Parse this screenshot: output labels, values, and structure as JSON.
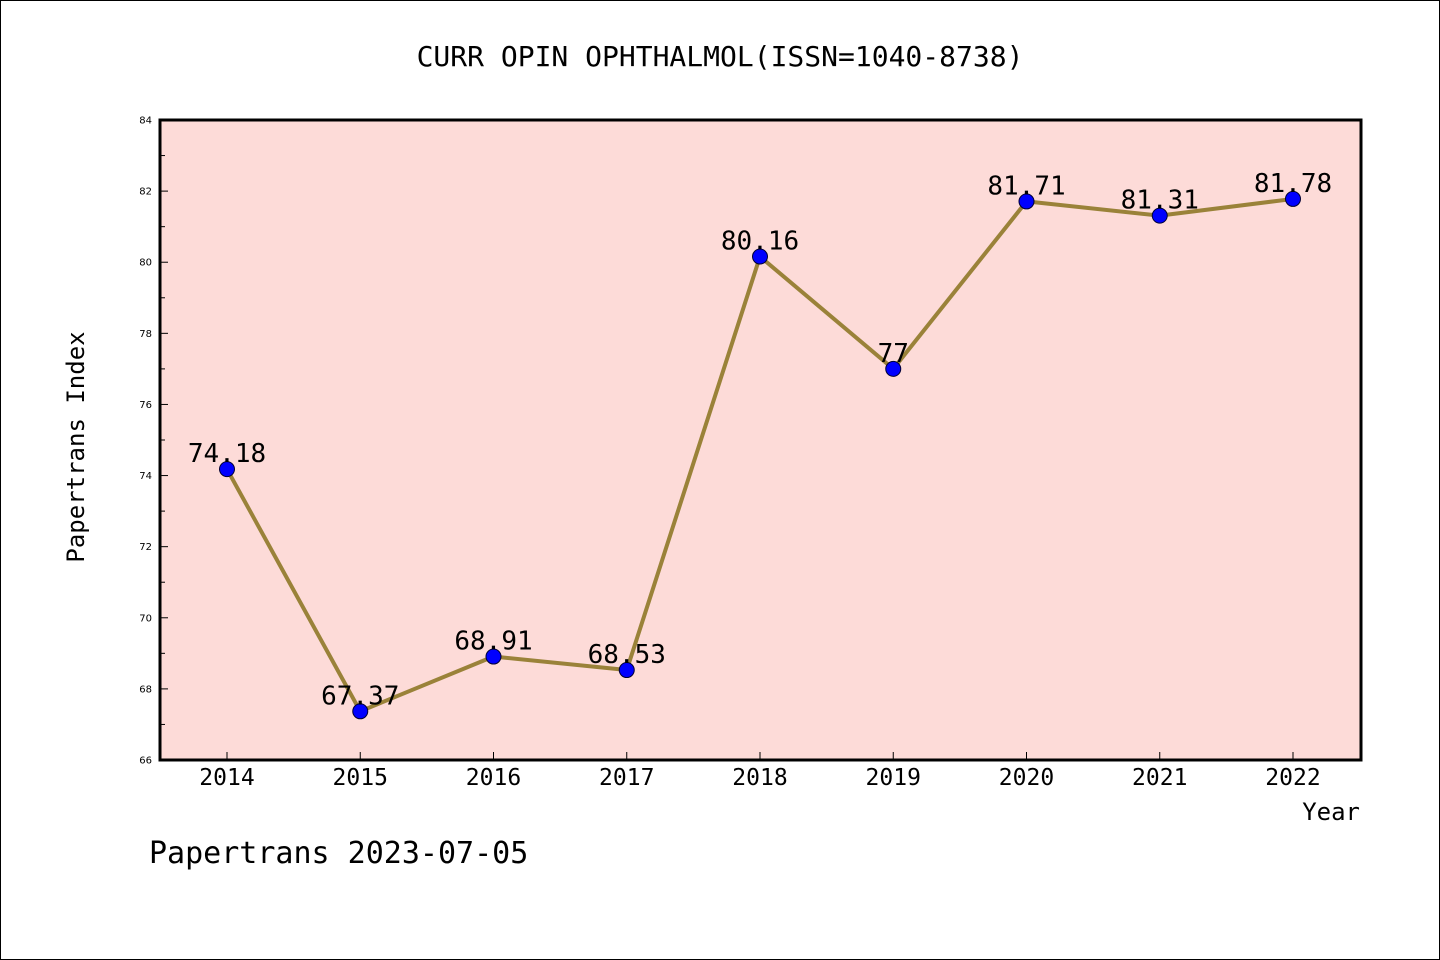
{
  "chart_data": {
    "type": "line",
    "title": "CURR OPIN OPHTHALMOL(ISSN=1040-8738)",
    "xlabel": "Year",
    "ylabel": "Papertrans Index",
    "categories": [
      "2014",
      "2015",
      "2016",
      "2017",
      "2018",
      "2019",
      "2020",
      "2021",
      "2022"
    ],
    "series": [
      {
        "values": [
          74.18,
          67.37,
          68.91,
          68.53,
          80.16,
          77,
          81.71,
          81.31,
          81.78
        ],
        "labels": [
          "74.18",
          "67.37",
          "68.91",
          "68.53",
          "80.16",
          "77",
          "81.71",
          "81.31",
          "81.78"
        ]
      }
    ],
    "ylim": [
      66,
      84
    ],
    "y_major_ticks": [
      66,
      68,
      70,
      72,
      74,
      76,
      78,
      80,
      82,
      84
    ],
    "grid": false,
    "footer": "Papertrans 2023-07-05"
  },
  "colors": {
    "plot_background": "#fddbd8",
    "line": "#9a8239",
    "marker": "#0000ff",
    "axis": "#000000"
  }
}
